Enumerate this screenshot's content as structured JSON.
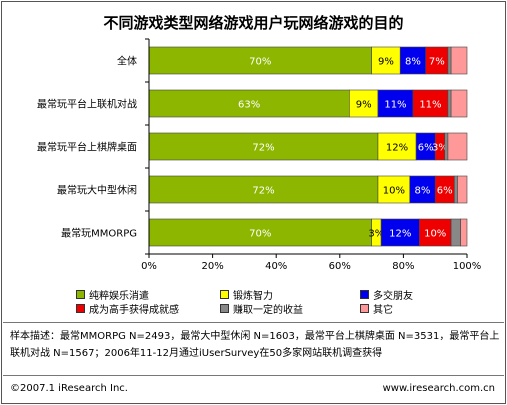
{
  "chart_data": {
    "type": "bar",
    "orientation": "horizontal",
    "stacked": true,
    "title": "不同游戏类型网络游戏用户玩网络游戏的目的",
    "categories": [
      "全体",
      "最常玩平台上联机对战",
      "最常玩平台上棋牌桌面",
      "最常玩大中型休闲",
      "最常玩MMORPG"
    ],
    "series": [
      {
        "name": "纯粹娱乐消遣",
        "color": "#8db600",
        "values": [
          70,
          63,
          72,
          72,
          70
        ],
        "labels": [
          "70%",
          "63%",
          "72%",
          "72%",
          "70%"
        ]
      },
      {
        "name": "锻炼智力",
        "color": "#ffff00",
        "values": [
          9,
          9,
          12,
          10,
          3
        ],
        "labels": [
          "9%",
          "9%",
          "12%",
          "10%",
          "3%"
        ]
      },
      {
        "name": "多交朋友",
        "color": "#0000ee",
        "values": [
          8,
          11,
          6,
          8,
          12
        ],
        "labels": [
          "8%",
          "11%",
          "6%",
          "8%",
          "12%"
        ]
      },
      {
        "name": "成为高手获得成就感",
        "color": "#ee0000",
        "values": [
          7,
          11,
          3,
          6,
          10
        ],
        "labels": [
          "7%",
          "11%",
          "3%",
          "6%",
          "10%"
        ]
      },
      {
        "name": "赚取一定的收益",
        "color": "#888888",
        "values": [
          1,
          1,
          1,
          1,
          3
        ],
        "labels": [
          "",
          "",
          "",
          "",
          ""
        ]
      },
      {
        "name": "其它",
        "color": "#ff9999",
        "values": [
          5,
          5,
          6,
          3,
          2
        ],
        "labels": [
          "",
          "",
          "",
          "",
          ""
        ]
      }
    ],
    "xlim": [
      0,
      100
    ],
    "xticks": [
      "0%",
      "20%",
      "40%",
      "60%",
      "80%",
      "100%"
    ],
    "grid": false,
    "legend_position": "bottom"
  },
  "note": "样本描述：最常MMORPG N=2493，最常大中型休闲 N=1603，最常平台上棋牌桌面 N=3531，最常平台上联机对战 N=1567；2006年11-12月通过iUserSurvey在50多家网站联机调查获得",
  "footer": {
    "copyright": "©2007.1 iResearch Inc.",
    "website": "www.iresearch.com.cn"
  }
}
